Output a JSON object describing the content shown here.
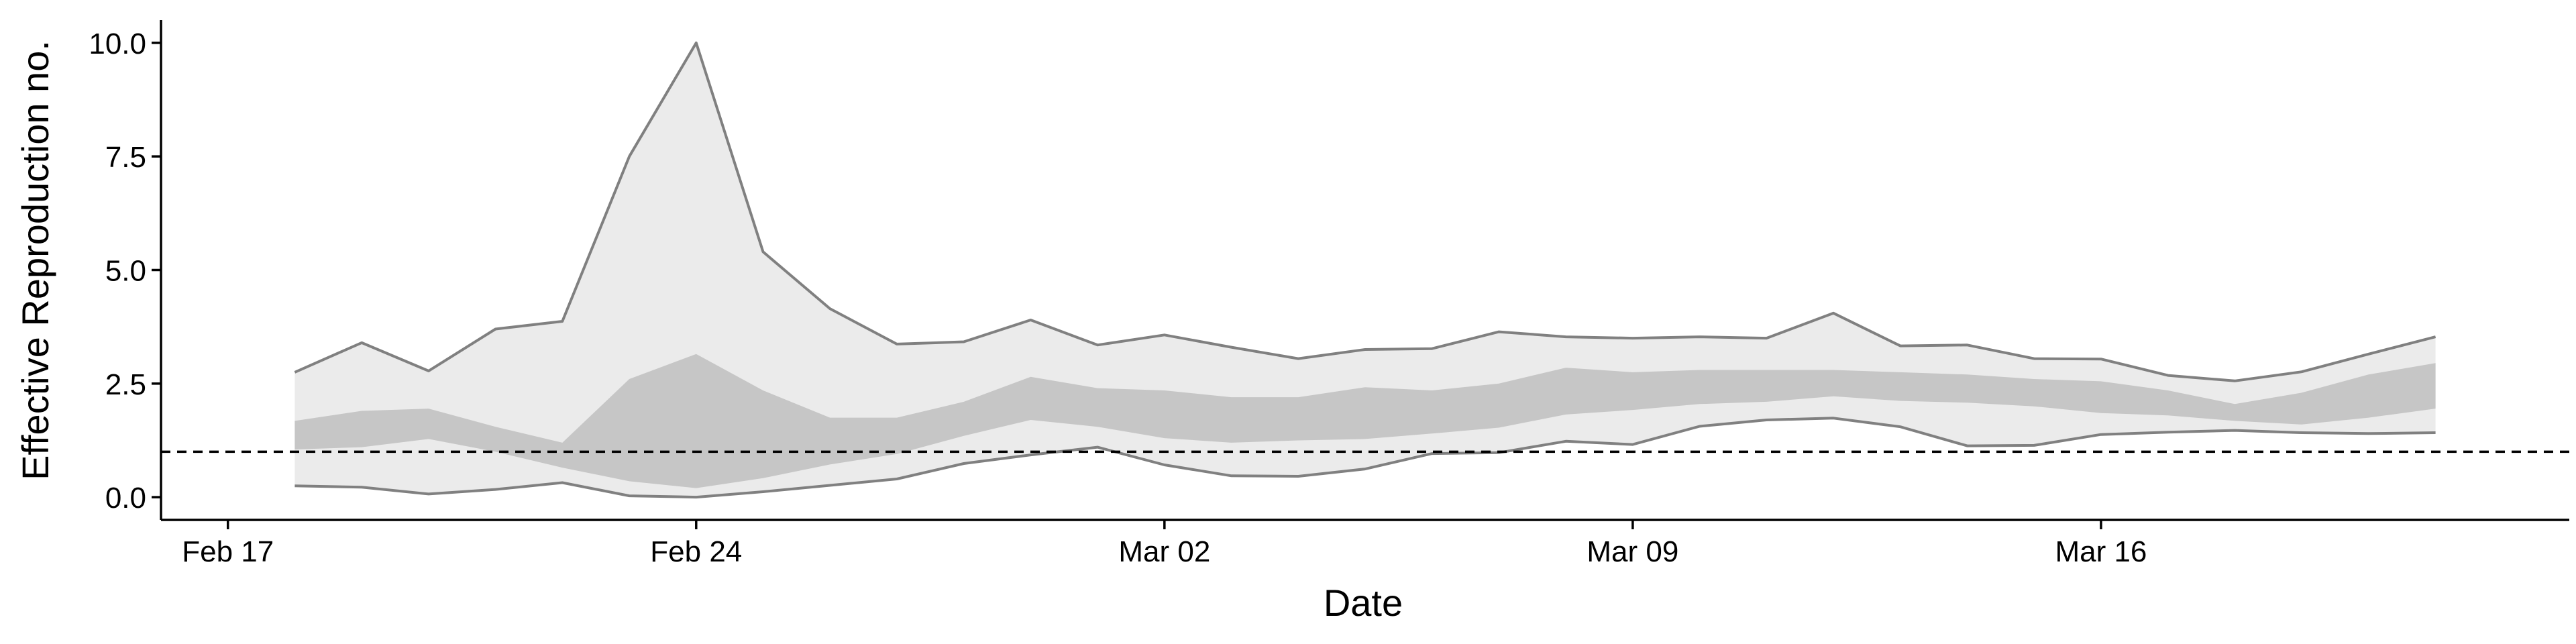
{
  "chart_data": {
    "type": "area",
    "xlabel": "Date",
    "ylabel": "Effective Reproduction no.",
    "xlim": [
      "2020-02-16",
      "2020-03-23"
    ],
    "ylim": [
      -0.5,
      10.5
    ],
    "x_ticks": [
      {
        "date": "2020-02-17",
        "label": "Feb 17"
      },
      {
        "date": "2020-02-24",
        "label": "Feb 24"
      },
      {
        "date": "2020-03-02",
        "label": "Mar 02"
      },
      {
        "date": "2020-03-09",
        "label": "Mar 09"
      },
      {
        "date": "2020-03-16",
        "label": "Mar 16"
      }
    ],
    "y_ticks": [
      {
        "value": 0,
        "label": "0.0"
      },
      {
        "value": 2.5,
        "label": "2.5"
      },
      {
        "value": 5,
        "label": "5.0"
      },
      {
        "value": 7.5,
        "label": "7.5"
      },
      {
        "value": 10,
        "label": "10.0"
      }
    ],
    "reference_line": {
      "y": 1,
      "style": "dashed"
    },
    "grid": false,
    "colors": {
      "outer_band": "#ebebeb",
      "inner_band": "#c6c6c6",
      "band_edge": "#808080",
      "reference": "#000000"
    },
    "dates": [
      "2020-02-18",
      "2020-02-19",
      "2020-02-20",
      "2020-02-21",
      "2020-02-22",
      "2020-02-23",
      "2020-02-24",
      "2020-02-25",
      "2020-02-26",
      "2020-02-27",
      "2020-02-28",
      "2020-02-29",
      "2020-03-01",
      "2020-03-02",
      "2020-03-03",
      "2020-03-04",
      "2020-03-05",
      "2020-03-06",
      "2020-03-07",
      "2020-03-08",
      "2020-03-09",
      "2020-03-10",
      "2020-03-11",
      "2020-03-12",
      "2020-03-13",
      "2020-03-14",
      "2020-03-15",
      "2020-03-16",
      "2020-03-17",
      "2020-03-18",
      "2020-03-19",
      "2020-03-20",
      "2020-03-21"
    ],
    "series": [
      {
        "values": [
          2.75,
          3.4,
          2.78,
          3.7,
          3.87,
          7.5,
          10.0,
          5.4,
          4.15,
          3.37,
          3.42,
          3.9,
          3.35,
          3.57,
          3.3,
          3.05,
          3.25,
          3.27,
          3.64,
          3.53,
          3.5,
          3.53,
          3.5,
          4.05,
          3.33,
          3.35,
          3.05,
          3.04,
          2.68,
          2.56,
          2.76,
          3.15,
          3.53
        ]
      },
      {
        "values": [
          1.68,
          1.9,
          1.95,
          1.55,
          1.2,
          2.6,
          3.15,
          2.35,
          1.75,
          1.75,
          2.1,
          2.65,
          2.4,
          2.35,
          2.2,
          2.2,
          2.42,
          2.35,
          2.5,
          2.85,
          2.75,
          2.8,
          2.8,
          2.8,
          2.75,
          2.7,
          2.6,
          2.55,
          2.35,
          2.05,
          2.3,
          2.7,
          2.95
        ]
      },
      {
        "values": [
          1.05,
          1.1,
          1.28,
          1.0,
          0.65,
          0.35,
          0.2,
          0.42,
          0.72,
          0.95,
          1.35,
          1.7,
          1.55,
          1.3,
          1.2,
          1.25,
          1.28,
          1.4,
          1.53,
          1.82,
          1.92,
          2.05,
          2.1,
          2.22,
          2.12,
          2.08,
          2.0,
          1.85,
          1.8,
          1.68,
          1.6,
          1.75,
          1.95
        ]
      },
      {
        "values": [
          0.25,
          0.22,
          0.07,
          0.17,
          0.32,
          0.03,
          0.0,
          0.12,
          0.26,
          0.4,
          0.74,
          0.93,
          1.1,
          0.71,
          0.47,
          0.46,
          0.62,
          0.96,
          0.98,
          1.23,
          1.16,
          1.56,
          1.7,
          1.74,
          1.55,
          1.13,
          1.14,
          1.38,
          1.43,
          1.47,
          1.42,
          1.4,
          1.42
        ]
      }
    ]
  }
}
